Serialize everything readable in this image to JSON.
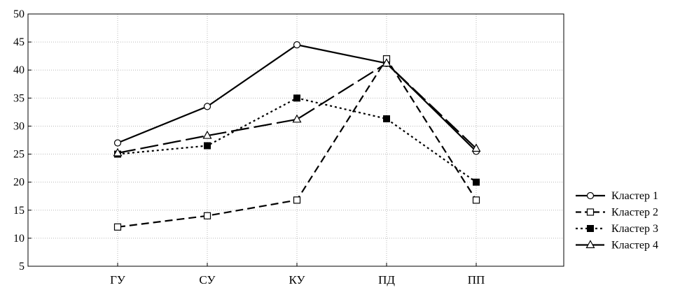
{
  "chart_data": {
    "type": "line",
    "title": "",
    "xlabel": "",
    "ylabel": "",
    "categories": [
      "ГУ",
      "СУ",
      "КУ",
      "ПД",
      "ПП"
    ],
    "ylim": [
      5,
      50
    ],
    "yticks": [
      5,
      10,
      15,
      20,
      25,
      30,
      35,
      40,
      45,
      50
    ],
    "grid": true,
    "legend_position": "right",
    "series": [
      {
        "name": "Кластер 1",
        "values": [
          27.0,
          33.5,
          44.5,
          41.2,
          25.5
        ],
        "marker": "circle-open",
        "line": "solid"
      },
      {
        "name": "Кластер 2",
        "values": [
          12.0,
          14.0,
          16.8,
          42.0,
          16.8
        ],
        "marker": "square-open",
        "line": "dashed"
      },
      {
        "name": "Кластер 3",
        "values": [
          25.0,
          26.5,
          35.0,
          31.3,
          20.0
        ],
        "marker": "square-filled",
        "line": "dotted"
      },
      {
        "name": "Кластер 4",
        "values": [
          25.2,
          28.3,
          31.2,
          41.2,
          26.0
        ],
        "marker": "triangle-open",
        "line": "long-dash"
      }
    ]
  }
}
